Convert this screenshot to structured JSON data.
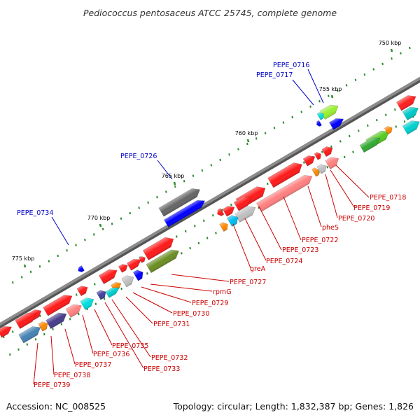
{
  "title": "Pediococcus pentosaceus ATCC 25745, complete genome",
  "footer": {
    "accession": "Accession: NC_008525",
    "stats": "Topology: circular; Length: 1,832,387 bp; Genes: 1,826"
  },
  "colors": {
    "backbone": "#8c8c8c",
    "tick": "#2e8b2e",
    "label_upper": "#0000c8",
    "label_lower": "#cc0000",
    "leader_upper": "#0000c8",
    "leader_lower": "#cc0000"
  },
  "axis_ticks": [
    "750 kbp",
    "755 kbp",
    "760 kbp",
    "765 kbp",
    "770 kbp",
    "775 kbp"
  ],
  "gene_labels_upper": [
    "PEPE_0716",
    "PEPE_0717",
    "PEPE_0726",
    "PEPE_0734"
  ],
  "gene_labels_lower": [
    "PEPE_0718",
    "PEPE_0719",
    "PEPE_0720",
    "pheS",
    "PEPE_0722",
    "PEPE_0723",
    "PEPE_0724",
    "greA",
    "PEPE_0727",
    "rpmG",
    "PEPE_0729",
    "PEPE_0730",
    "PEPE_0731",
    "PEPE_0732",
    "PEPE_0733",
    "PEPE_0735",
    "PEPE_0736",
    "PEPE_0737",
    "PEPE_0738",
    "PEPE_0739"
  ]
}
